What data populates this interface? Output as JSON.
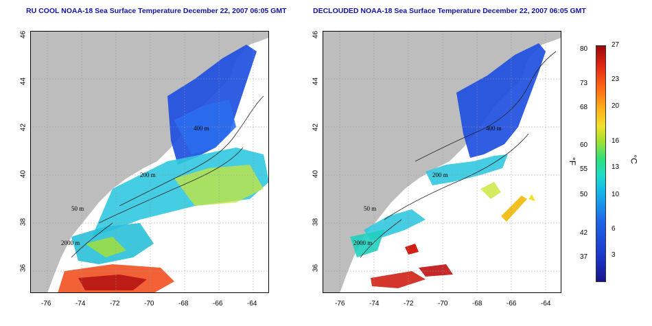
{
  "titles": {
    "left": "RU COOL NOAA-18 Sea Surface Temperature December 22, 2007 06:05 GMT",
    "right": "DECLOUDED NOAA-18 Sea Surface Temperature December 22, 2007 06:05 GMT"
  },
  "latitude_ticks": [
    "46",
    "44",
    "42",
    "40",
    "38",
    "36"
  ],
  "longitude_ticks": [
    "-76",
    "-74",
    "-72",
    "-70",
    "-68",
    "-66",
    "-64"
  ],
  "contour_labels": [
    "400 m",
    "200 m",
    "50 m",
    "2000 m"
  ],
  "colorbar": {
    "fahrenheit_ticks": [
      "80",
      "73",
      "68",
      "60",
      "55",
      "50",
      "42",
      "37"
    ],
    "celsius_ticks": [
      "27",
      "23",
      "20",
      "16",
      "13",
      "10",
      "6",
      "3"
    ],
    "fahrenheit_unit": "°F",
    "celsius_unit": "°C"
  },
  "colors": {
    "land": "#bdbdbd",
    "title": "#1010a8",
    "cold": "#1f4fe0",
    "warm": "#e0241a"
  }
}
